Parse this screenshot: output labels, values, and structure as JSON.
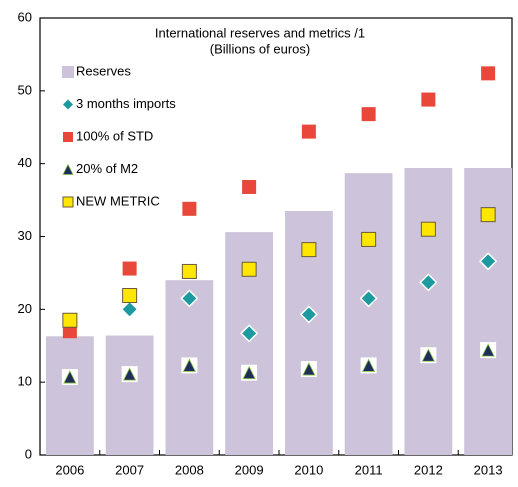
{
  "chart_data": {
    "type": "bar_markers",
    "title": "International reserves and metrics /1",
    "subtitle": "(Billions of euros)",
    "categories": [
      "2006",
      "2007",
      "2008",
      "2009",
      "2010",
      "2011",
      "2012",
      "2013"
    ],
    "series": [
      {
        "name": "Reserves",
        "marker": "bar",
        "color": "#cdc3da",
        "values": [
          16.3,
          16.4,
          24.0,
          30.6,
          33.5,
          38.7,
          39.4,
          39.4
        ]
      },
      {
        "name": "3 months imports",
        "marker": "diamond",
        "color": "#1c9aa0",
        "values": [
          null,
          20.0,
          21.5,
          16.7,
          19.3,
          21.5,
          23.7,
          26.6
        ]
      },
      {
        "name": "100% of STD",
        "marker": "square",
        "color": "#e8473a",
        "values": [
          17.0,
          25.6,
          33.8,
          36.8,
          44.4,
          46.8,
          48.8,
          52.4
        ]
      },
      {
        "name": "20% of M2",
        "marker": "triangle",
        "color": "#1f2d5a",
        "values": [
          10.7,
          11.1,
          12.3,
          11.3,
          11.8,
          12.3,
          13.7,
          14.4
        ]
      },
      {
        "name": "NEW METRIC",
        "marker": "outlined-square",
        "color": "#ffe600",
        "values": [
          18.5,
          21.9,
          25.2,
          25.5,
          28.2,
          29.6,
          31.0,
          33.0
        ]
      }
    ],
    "ylim": [
      0,
      60
    ],
    "yticks": [
      0,
      10,
      20,
      30,
      40,
      50,
      60
    ],
    "grid": false
  }
}
